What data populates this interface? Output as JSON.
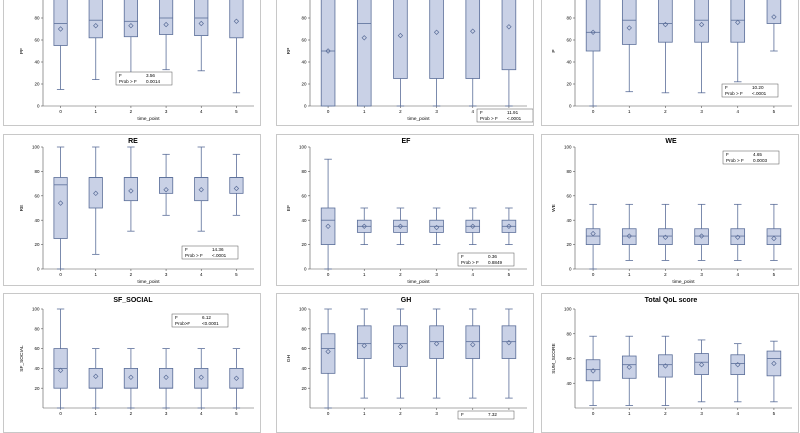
{
  "colors": {
    "box_fill": "#c9d1e6",
    "box_stroke": "#5b6e99",
    "panel_border": "#c8c8c8"
  },
  "chart_data": [
    {
      "type": "boxplot",
      "title": "",
      "xlabel": "time_point",
      "ylabel": "PF",
      "categories": [
        "0",
        "1",
        "2",
        "3",
        "4",
        "5"
      ],
      "ylim": [
        0,
        100
      ],
      "yticks": [
        0,
        20,
        40,
        60,
        80
      ],
      "boxes": [
        {
          "min": 15,
          "q1": 55,
          "median": 75,
          "q3": 100,
          "max": 100,
          "mean": 70
        },
        {
          "min": 24,
          "q1": 62,
          "median": 78,
          "q3": 100,
          "max": 100,
          "mean": 73
        },
        {
          "min": 25,
          "q1": 63,
          "median": 77,
          "q3": 100,
          "max": 100,
          "mean": 73
        },
        {
          "min": 33,
          "q1": 65,
          "median": 80,
          "q3": 100,
          "max": 100,
          "mean": 74
        },
        {
          "min": 32,
          "q1": 64,
          "median": 80,
          "q3": 100,
          "max": 100,
          "mean": 75
        },
        {
          "min": 12,
          "q1": 62,
          "median": 100,
          "q3": 100,
          "max": 100,
          "mean": 77
        }
      ],
      "stat": {
        "label_f": "F",
        "value_f": "3.56",
        "label_p": "Prob > F",
        "value_p": "0.0014"
      }
    },
    {
      "type": "boxplot",
      "title": "",
      "xlabel": "time_point",
      "ylabel": "RP",
      "categories": [
        "0",
        "1",
        "2",
        "3",
        "4",
        "5"
      ],
      "ylim": [
        0,
        100
      ],
      "yticks": [
        0,
        20,
        40,
        60,
        80
      ],
      "boxes": [
        {
          "min": 0,
          "q1": 0,
          "median": 50,
          "q3": 100,
          "max": 100,
          "mean": 50
        },
        {
          "min": 0,
          "q1": 0,
          "median": 75,
          "q3": 100,
          "max": 100,
          "mean": 62
        },
        {
          "min": 0,
          "q1": 25,
          "median": 100,
          "q3": 100,
          "max": 100,
          "mean": 64
        },
        {
          "min": 0,
          "q1": 25,
          "median": 100,
          "q3": 100,
          "max": 100,
          "mean": 67
        },
        {
          "min": 0,
          "q1": 25,
          "median": 100,
          "q3": 100,
          "max": 100,
          "mean": 68
        },
        {
          "min": 0,
          "q1": 33,
          "median": 100,
          "q3": 100,
          "max": 100,
          "mean": 72
        }
      ],
      "stat": {
        "label_f": "F",
        "value_f": "11.91",
        "label_p": "Prob > F",
        "value_p": "<.0001"
      }
    },
    {
      "type": "boxplot",
      "title": "",
      "xlabel": "",
      "ylabel": "P",
      "categories": [
        "0",
        "1",
        "2",
        "3",
        "4",
        "5"
      ],
      "ylim": [
        0,
        100
      ],
      "yticks": [
        0,
        20,
        40,
        60,
        80
      ],
      "boxes": [
        {
          "min": 0,
          "q1": 50,
          "median": 67,
          "q3": 100,
          "max": 100,
          "mean": 67
        },
        {
          "min": 13,
          "q1": 56,
          "median": 78,
          "q3": 100,
          "max": 100,
          "mean": 71
        },
        {
          "min": 12,
          "q1": 58,
          "median": 75,
          "q3": 100,
          "max": 100,
          "mean": 74
        },
        {
          "min": 12,
          "q1": 58,
          "median": 78,
          "q3": 100,
          "max": 100,
          "mean": 74
        },
        {
          "min": 22,
          "q1": 58,
          "median": 78,
          "q3": 100,
          "max": 100,
          "mean": 76
        },
        {
          "min": 50,
          "q1": 75,
          "median": 100,
          "q3": 100,
          "max": 100,
          "mean": 81
        }
      ],
      "stat": {
        "label_f": "F",
        "value_f": "10.20",
        "label_p": "Prob > F",
        "value_p": "<.0001"
      }
    },
    {
      "type": "boxplot",
      "title": "RE",
      "xlabel": "time_point",
      "ylabel": "RE",
      "categories": [
        "0",
        "1",
        "2",
        "3",
        "4",
        "5"
      ],
      "ylim": [
        0,
        100
      ],
      "yticks": [
        0,
        20,
        40,
        60,
        80,
        100
      ],
      "boxes": [
        {
          "min": 0,
          "q1": 25,
          "median": 69,
          "q3": 75,
          "max": 100,
          "mean": 54
        },
        {
          "min": 12,
          "q1": 50,
          "median": 75,
          "q3": 75,
          "max": 100,
          "mean": 62
        },
        {
          "min": 31,
          "q1": 56,
          "median": 75,
          "q3": 75,
          "max": 100,
          "mean": 64
        },
        {
          "min": 44,
          "q1": 62,
          "median": 75,
          "q3": 75,
          "max": 94,
          "mean": 65
        },
        {
          "min": 31,
          "q1": 56,
          "median": 75,
          "q3": 75,
          "max": 100,
          "mean": 65
        },
        {
          "min": 44,
          "q1": 62,
          "median": 75,
          "q3": 75,
          "max": 94,
          "mean": 66
        }
      ],
      "stat": {
        "label_f": "F",
        "value_f": "14.36",
        "label_p": "Prob > F",
        "value_p": "<.0001"
      }
    },
    {
      "type": "boxplot",
      "title": "EF",
      "xlabel": "time_point",
      "ylabel": "EF",
      "categories": [
        "0",
        "1",
        "2",
        "3",
        "4",
        "5"
      ],
      "ylim": [
        0,
        100
      ],
      "yticks": [
        0,
        20,
        40,
        60,
        80,
        100
      ],
      "boxes": [
        {
          "min": 0,
          "q1": 20,
          "median": 40,
          "q3": 50,
          "max": 90,
          "mean": 35
        },
        {
          "min": 20,
          "q1": 30,
          "median": 35,
          "q3": 40,
          "max": 50,
          "mean": 35
        },
        {
          "min": 20,
          "q1": 30,
          "median": 35,
          "q3": 40,
          "max": 50,
          "mean": 35
        },
        {
          "min": 20,
          "q1": 30,
          "median": 35,
          "q3": 40,
          "max": 50,
          "mean": 34
        },
        {
          "min": 20,
          "q1": 30,
          "median": 35,
          "q3": 40,
          "max": 50,
          "mean": 35
        },
        {
          "min": 20,
          "q1": 30,
          "median": 35,
          "q3": 40,
          "max": 50,
          "mean": 35
        }
      ],
      "stat": {
        "label_f": "F",
        "value_f": "0.36",
        "label_p": "Prob > F",
        "value_p": "0.8849"
      }
    },
    {
      "type": "boxplot",
      "title": "WE",
      "xlabel": "time_point",
      "ylabel": "WE",
      "categories": [
        "0",
        "1",
        "2",
        "3",
        "4",
        "5"
      ],
      "ylim": [
        0,
        100
      ],
      "yticks": [
        0,
        20,
        40,
        60,
        80,
        100
      ],
      "boxes": [
        {
          "min": 0,
          "q1": 20,
          "median": 27,
          "q3": 33,
          "max": 53,
          "mean": 29
        },
        {
          "min": 7,
          "q1": 20,
          "median": 27,
          "q3": 33,
          "max": 53,
          "mean": 27
        },
        {
          "min": 7,
          "q1": 20,
          "median": 27,
          "q3": 33,
          "max": 53,
          "mean": 26
        },
        {
          "min": 7,
          "q1": 20,
          "median": 27,
          "q3": 33,
          "max": 53,
          "mean": 27
        },
        {
          "min": 7,
          "q1": 20,
          "median": 27,
          "q3": 33,
          "max": 53,
          "mean": 26
        },
        {
          "min": 7,
          "q1": 20,
          "median": 27,
          "q3": 33,
          "max": 53,
          "mean": 25
        }
      ],
      "stat": {
        "label_f": "F",
        "value_f": "4.65",
        "label_p": "Prob > F",
        "value_p": "0.0003"
      }
    },
    {
      "type": "boxplot",
      "title": "SF_SOCIAL",
      "xlabel": "",
      "ylabel": "SF_SOCIAL",
      "categories": [
        "0",
        "1",
        "2",
        "3",
        "4",
        "5"
      ],
      "ylim": [
        0,
        100
      ],
      "yticks": [
        20,
        40,
        60,
        80,
        100
      ],
      "boxes": [
        {
          "min": 0,
          "q1": 20,
          "median": 40,
          "q3": 60,
          "max": 100,
          "mean": 38
        },
        {
          "min": 0,
          "q1": 20,
          "median": 20,
          "q3": 40,
          "max": 60,
          "mean": 32
        },
        {
          "min": 0,
          "q1": 20,
          "median": 20,
          "q3": 40,
          "max": 60,
          "mean": 31
        },
        {
          "min": 0,
          "q1": 20,
          "median": 20,
          "q3": 40,
          "max": 60,
          "mean": 31
        },
        {
          "min": 0,
          "q1": 20,
          "median": 20,
          "q3": 40,
          "max": 60,
          "mean": 31
        },
        {
          "min": 0,
          "q1": 20,
          "median": 20,
          "q3": 40,
          "max": 60,
          "mean": 30
        }
      ],
      "stat": {
        "label_f": "F",
        "value_f": "6.12",
        "label_p": "Prob>F",
        "value_p": "<0.0001"
      }
    },
    {
      "type": "boxplot",
      "title": "GH",
      "xlabel": "",
      "ylabel": "GH",
      "categories": [
        "0",
        "1",
        "2",
        "3",
        "4",
        "5"
      ],
      "ylim": [
        0,
        100
      ],
      "yticks": [
        20,
        40,
        60,
        80,
        100
      ],
      "boxes": [
        {
          "min": 0,
          "q1": 35,
          "median": 60,
          "q3": 75,
          "max": 100,
          "mean": 57
        },
        {
          "min": 10,
          "q1": 50,
          "median": 65,
          "q3": 83,
          "max": 100,
          "mean": 63
        },
        {
          "min": 10,
          "q1": 42,
          "median": 65,
          "q3": 83,
          "max": 100,
          "mean": 62
        },
        {
          "min": 10,
          "q1": 50,
          "median": 67,
          "q3": 83,
          "max": 100,
          "mean": 65
        },
        {
          "min": 10,
          "q1": 50,
          "median": 67,
          "q3": 83,
          "max": 100,
          "mean": 64
        },
        {
          "min": 10,
          "q1": 50,
          "median": 67,
          "q3": 83,
          "max": 100,
          "mean": 66
        }
      ],
      "stat": {
        "label_f": "F",
        "value_f": "7.32",
        "label_p": "",
        "value_p": ""
      }
    },
    {
      "type": "boxplot",
      "title": "Total QoL score",
      "xlabel": "",
      "ylabel": "SUM_SCORE",
      "categories": [
        "0",
        "1",
        "2",
        "3",
        "4",
        "5"
      ],
      "ylim": [
        20,
        100
      ],
      "yticks": [
        40,
        60,
        80,
        100
      ],
      "boxes": [
        {
          "min": 22,
          "q1": 42,
          "median": 51,
          "q3": 59,
          "max": 78,
          "mean": 50
        },
        {
          "min": 22,
          "q1": 44,
          "median": 55,
          "q3": 62,
          "max": 78,
          "mean": 53
        },
        {
          "min": 22,
          "q1": 45,
          "median": 55,
          "q3": 63,
          "max": 78,
          "mean": 54
        },
        {
          "min": 25,
          "q1": 47,
          "median": 57,
          "q3": 64,
          "max": 75,
          "mean": 55
        },
        {
          "min": 25,
          "q1": 47,
          "median": 56,
          "q3": 63,
          "max": 72,
          "mean": 55
        },
        {
          "min": 25,
          "q1": 46,
          "median": 60,
          "q3": 66,
          "max": 74,
          "mean": 56
        }
      ],
      "stat": {
        "label_f": "",
        "value_f": "",
        "label_p": "",
        "value_p": ""
      }
    }
  ]
}
